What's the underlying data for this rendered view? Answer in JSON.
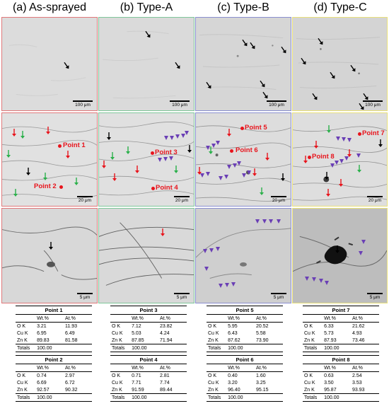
{
  "columns": [
    {
      "title": "(a) As-sprayed",
      "color": "#e0787a"
    },
    {
      "title": "(b) Type-A",
      "color": "#7fc79a"
    },
    {
      "title": "(c) Type-B",
      "color": "#8a8fd0"
    },
    {
      "title": "(d) Type-C",
      "color": "#e9e07a"
    }
  ],
  "scale_labels": {
    "row1": "100 μm",
    "row2": "20 μm",
    "row3": "5 μm"
  },
  "points": {
    "p1": "Point 1",
    "p2": "Point 2",
    "p3": "Point 3",
    "p4": "Point 4",
    "p5": "Point 5",
    "p6": "Point 6",
    "p7": "Point 7",
    "p8": "Point 8"
  },
  "marker_colors": {
    "red": "#e8141c",
    "green": "#2ab04a",
    "black": "#000000",
    "purple": "#6a3fb5"
  },
  "tables": [
    {
      "title": "Point 1",
      "header": [
        "",
        "Wt.%",
        "At.%"
      ],
      "rows": [
        [
          "O K",
          "3.21",
          "11.93"
        ],
        [
          "Cu K",
          "6.95",
          "6.49"
        ],
        [
          "Zn K",
          "89.83",
          "81.58"
        ]
      ],
      "totals": [
        "Totals",
        "100.00",
        ""
      ]
    },
    {
      "title": "Point 2",
      "header": [
        "",
        "Wt.%",
        "At.%"
      ],
      "rows": [
        [
          "O K",
          "0.74",
          "2.97"
        ],
        [
          "Cu K",
          "6.69",
          "6.72"
        ],
        [
          "Zn K",
          "92.57",
          "90.32"
        ]
      ],
      "totals": [
        "Totals",
        "100.00",
        ""
      ]
    },
    {
      "title": "Point 3",
      "header": [
        "",
        "Wt.%",
        "At.%"
      ],
      "rows": [
        [
          "O K",
          "7.12",
          "23.82"
        ],
        [
          "Cu K",
          "5.03",
          "4.24"
        ],
        [
          "Zn K",
          "87.85",
          "71.94"
        ]
      ],
      "totals": [
        "Totals",
        "100.00",
        ""
      ]
    },
    {
      "title": "Point 4",
      "header": [
        "",
        "Wt.%",
        "At.%"
      ],
      "rows": [
        [
          "O K",
          "0.71",
          "2.81"
        ],
        [
          "Cu K",
          "7.71",
          "7.74"
        ],
        [
          "Zn K",
          "91.59",
          "89.44"
        ]
      ],
      "totals": [
        "Totals",
        "100.00",
        ""
      ]
    },
    {
      "title": "Point 5",
      "header": [
        "",
        "Wt.%",
        "At.%"
      ],
      "rows": [
        [
          "O K",
          "5.95",
          "20.52"
        ],
        [
          "Cu K",
          "6.43",
          "5.58"
        ],
        [
          "Zn K",
          "87.62",
          "73.90"
        ]
      ],
      "totals": [
        "Totals",
        "100.00",
        ""
      ]
    },
    {
      "title": "Point 6",
      "header": [
        "",
        "Wt.%",
        "At.%"
      ],
      "rows": [
        [
          "O K",
          "0.40",
          "1.60"
        ],
        [
          "Cu K",
          "3.20",
          "3.25"
        ],
        [
          "Zn K",
          "96.40",
          "95.15"
        ]
      ],
      "totals": [
        "Totals",
        "100.00",
        ""
      ]
    },
    {
      "title": "Point 7",
      "header": [
        "",
        "Wt.%",
        "At.%"
      ],
      "rows": [
        [
          "O K",
          "6.33",
          "21.62"
        ],
        [
          "Cu K",
          "5.73",
          "4.93"
        ],
        [
          "Zn K",
          "87.93",
          "73.46"
        ]
      ],
      "totals": [
        "Totals",
        "100.00",
        ""
      ]
    },
    {
      "title": "Point 8",
      "header": [
        "",
        "Wt.%",
        "At.%"
      ],
      "rows": [
        [
          "O K",
          "0.63",
          "2.54"
        ],
        [
          "Cu K",
          "3.50",
          "3.53"
        ],
        [
          "Zn K",
          "95.87",
          "93.93"
        ]
      ],
      "totals": [
        "Totals",
        "100.00",
        ""
      ]
    }
  ]
}
